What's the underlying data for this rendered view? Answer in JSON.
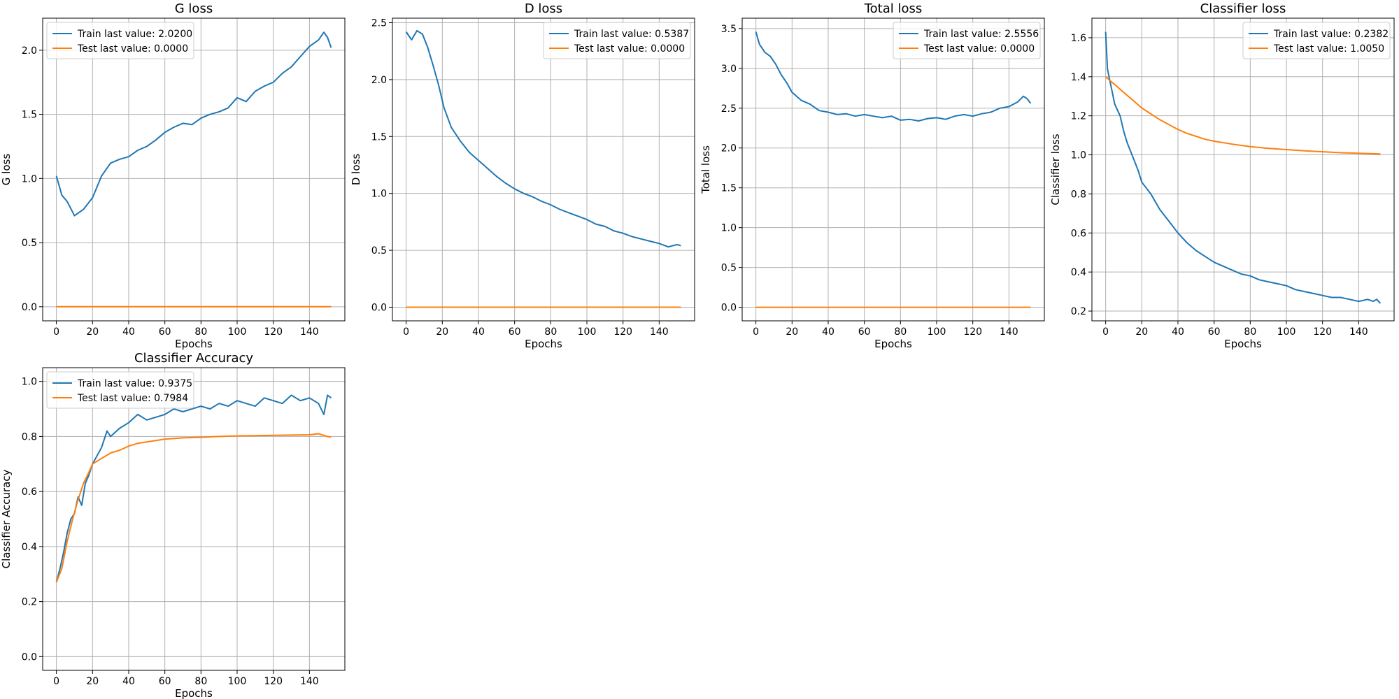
{
  "chart_data": [
    {
      "type": "line",
      "title": "G loss",
      "xlabel": "Epochs",
      "ylabel": "G loss",
      "xlim": [
        -7.6,
        159.6
      ],
      "ylim": [
        -0.11,
        2.25
      ],
      "xticks": [
        0,
        20,
        40,
        60,
        80,
        100,
        120,
        140
      ],
      "yticks": [
        0.0,
        0.5,
        1.0,
        1.5,
        2.0
      ],
      "yticks_decimals": 1,
      "grid": true,
      "legend_position": "top-left",
      "series": [
        {
          "name": "Train last value: 2.0200",
          "color": "#1f77b4",
          "x": [
            0,
            3,
            6,
            10,
            15,
            20,
            25,
            30,
            35,
            40,
            45,
            50,
            55,
            60,
            65,
            70,
            75,
            80,
            85,
            90,
            95,
            100,
            105,
            110,
            115,
            120,
            125,
            130,
            135,
            140,
            145,
            148,
            150,
            152
          ],
          "y": [
            1.02,
            0.87,
            0.82,
            0.71,
            0.76,
            0.85,
            1.02,
            1.12,
            1.15,
            1.17,
            1.22,
            1.25,
            1.3,
            1.36,
            1.4,
            1.43,
            1.42,
            1.47,
            1.5,
            1.52,
            1.55,
            1.63,
            1.6,
            1.68,
            1.72,
            1.75,
            1.82,
            1.87,
            1.95,
            2.03,
            2.08,
            2.14,
            2.1,
            2.02
          ]
        },
        {
          "name": "Test last value: 0.0000",
          "color": "#ff7f0e",
          "x": [
            0,
            152
          ],
          "y": [
            0.0,
            0.0
          ]
        }
      ]
    },
    {
      "type": "line",
      "title": "D loss",
      "xlabel": "Epochs",
      "ylabel": "D loss",
      "xlim": [
        -7.6,
        159.6
      ],
      "ylim": [
        -0.12,
        2.54
      ],
      "xticks": [
        0,
        20,
        40,
        60,
        80,
        100,
        120,
        140
      ],
      "yticks": [
        0.0,
        0.5,
        1.0,
        1.5,
        2.0,
        2.5
      ],
      "yticks_decimals": 1,
      "grid": true,
      "legend_position": "top-right",
      "series": [
        {
          "name": "Train last value: 0.5387",
          "color": "#1f77b4",
          "x": [
            0,
            3,
            6,
            9,
            12,
            15,
            18,
            21,
            25,
            30,
            35,
            40,
            45,
            50,
            55,
            60,
            65,
            70,
            75,
            80,
            85,
            90,
            95,
            100,
            105,
            110,
            115,
            120,
            125,
            130,
            135,
            140,
            145,
            150,
            152
          ],
          "y": [
            2.42,
            2.35,
            2.43,
            2.4,
            2.28,
            2.12,
            1.95,
            1.75,
            1.58,
            1.46,
            1.36,
            1.29,
            1.22,
            1.15,
            1.09,
            1.04,
            1.0,
            0.97,
            0.93,
            0.9,
            0.86,
            0.83,
            0.8,
            0.77,
            0.73,
            0.71,
            0.67,
            0.65,
            0.62,
            0.6,
            0.58,
            0.56,
            0.53,
            0.55,
            0.54
          ]
        },
        {
          "name": "Test last value: 0.0000",
          "color": "#ff7f0e",
          "x": [
            0,
            152
          ],
          "y": [
            0.0,
            0.0
          ]
        }
      ]
    },
    {
      "type": "line",
      "title": "Total loss",
      "xlabel": "Epochs",
      "ylabel": "Total loss",
      "xlim": [
        -7.6,
        159.6
      ],
      "ylim": [
        -0.17,
        3.63
      ],
      "xticks": [
        0,
        20,
        40,
        60,
        80,
        100,
        120,
        140
      ],
      "yticks": [
        0.0,
        0.5,
        1.0,
        1.5,
        2.0,
        2.5,
        3.0,
        3.5
      ],
      "yticks_decimals": 1,
      "grid": true,
      "legend_position": "top-right",
      "series": [
        {
          "name": "Train last value: 2.5556",
          "color": "#1f77b4",
          "x": [
            0,
            2,
            5,
            8,
            11,
            14,
            17,
            20,
            25,
            30,
            35,
            40,
            45,
            50,
            55,
            60,
            65,
            70,
            75,
            80,
            85,
            90,
            95,
            100,
            105,
            110,
            115,
            120,
            125,
            130,
            135,
            140,
            145,
            148,
            150,
            152
          ],
          "y": [
            3.46,
            3.3,
            3.2,
            3.15,
            3.05,
            2.92,
            2.82,
            2.7,
            2.6,
            2.55,
            2.47,
            2.45,
            2.42,
            2.43,
            2.4,
            2.42,
            2.4,
            2.38,
            2.4,
            2.35,
            2.36,
            2.34,
            2.37,
            2.38,
            2.36,
            2.4,
            2.42,
            2.4,
            2.43,
            2.45,
            2.5,
            2.52,
            2.58,
            2.65,
            2.62,
            2.56
          ]
        },
        {
          "name": "Test last value: 0.0000",
          "color": "#ff7f0e",
          "x": [
            0,
            152
          ],
          "y": [
            0.0,
            0.0
          ]
        }
      ]
    },
    {
      "type": "line",
      "title": "Classifier loss",
      "xlabel": "Epochs",
      "ylabel": "Classifier loss",
      "xlim": [
        -7.6,
        159.6
      ],
      "ylim": [
        0.15,
        1.7
      ],
      "xticks": [
        0,
        20,
        40,
        60,
        80,
        100,
        120,
        140
      ],
      "yticks": [
        0.2,
        0.4,
        0.6,
        0.8,
        1.0,
        1.2,
        1.4,
        1.6
      ],
      "yticks_decimals": 1,
      "grid": true,
      "legend_position": "top-right",
      "series": [
        {
          "name": "Train last value: 0.2382",
          "color": "#1f77b4",
          "x": [
            0,
            1,
            3,
            5,
            8,
            10,
            12,
            15,
            18,
            20,
            25,
            30,
            35,
            40,
            45,
            50,
            55,
            60,
            65,
            70,
            75,
            80,
            85,
            90,
            95,
            100,
            105,
            110,
            115,
            120,
            125,
            130,
            135,
            140,
            145,
            148,
            150,
            152
          ],
          "y": [
            1.63,
            1.44,
            1.35,
            1.26,
            1.2,
            1.12,
            1.06,
            0.99,
            0.92,
            0.86,
            0.8,
            0.72,
            0.66,
            0.6,
            0.55,
            0.51,
            0.48,
            0.45,
            0.43,
            0.41,
            0.39,
            0.38,
            0.36,
            0.35,
            0.34,
            0.33,
            0.31,
            0.3,
            0.29,
            0.28,
            0.27,
            0.27,
            0.26,
            0.25,
            0.26,
            0.25,
            0.26,
            0.24
          ]
        },
        {
          "name": "Test last value: 1.0050",
          "color": "#ff7f0e",
          "x": [
            0,
            5,
            10,
            15,
            20,
            25,
            30,
            35,
            40,
            45,
            50,
            55,
            60,
            70,
            80,
            90,
            100,
            110,
            120,
            130,
            140,
            152
          ],
          "y": [
            1.4,
            1.36,
            1.32,
            1.28,
            1.24,
            1.21,
            1.18,
            1.155,
            1.13,
            1.11,
            1.095,
            1.08,
            1.07,
            1.055,
            1.042,
            1.033,
            1.027,
            1.021,
            1.016,
            1.011,
            1.008,
            1.005
          ]
        }
      ]
    },
    {
      "type": "line",
      "title": "Classifier Accuracy",
      "xlabel": "Epochs",
      "ylabel": "Classifier Accuracy",
      "xlim": [
        -7.6,
        159.6
      ],
      "ylim": [
        -0.05,
        1.05
      ],
      "xticks": [
        0,
        20,
        40,
        60,
        80,
        100,
        120,
        140
      ],
      "yticks": [
        0.0,
        0.2,
        0.4,
        0.6,
        0.8,
        1.0
      ],
      "yticks_decimals": 1,
      "grid": true,
      "legend_position": "top-left",
      "series": [
        {
          "name": "Train last value: 0.9375",
          "color": "#1f77b4",
          "x": [
            0,
            2,
            4,
            6,
            8,
            10,
            12,
            14,
            16,
            18,
            20,
            25,
            28,
            30,
            35,
            40,
            45,
            50,
            55,
            60,
            65,
            70,
            75,
            80,
            85,
            90,
            95,
            100,
            105,
            110,
            115,
            120,
            125,
            130,
            135,
            140,
            145,
            148,
            150,
            152
          ],
          "y": [
            0.27,
            0.32,
            0.38,
            0.45,
            0.5,
            0.52,
            0.58,
            0.55,
            0.63,
            0.66,
            0.7,
            0.76,
            0.82,
            0.8,
            0.83,
            0.85,
            0.88,
            0.86,
            0.87,
            0.88,
            0.9,
            0.89,
            0.9,
            0.91,
            0.9,
            0.92,
            0.91,
            0.93,
            0.92,
            0.91,
            0.94,
            0.93,
            0.92,
            0.95,
            0.93,
            0.94,
            0.92,
            0.88,
            0.95,
            0.94
          ]
        },
        {
          "name": "Test last value: 0.7984",
          "color": "#ff7f0e",
          "x": [
            0,
            3,
            6,
            9,
            12,
            15,
            18,
            20,
            25,
            30,
            35,
            40,
            45,
            50,
            55,
            60,
            70,
            80,
            90,
            100,
            110,
            120,
            130,
            140,
            145,
            150,
            152
          ],
          "y": [
            0.27,
            0.32,
            0.42,
            0.5,
            0.57,
            0.63,
            0.67,
            0.7,
            0.72,
            0.74,
            0.75,
            0.765,
            0.775,
            0.78,
            0.785,
            0.79,
            0.795,
            0.797,
            0.8,
            0.802,
            0.803,
            0.804,
            0.805,
            0.806,
            0.81,
            0.8,
            0.798
          ]
        }
      ]
    }
  ]
}
